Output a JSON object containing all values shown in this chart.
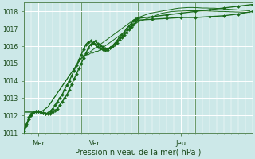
{
  "xlabel": "Pression niveau de la mer( hPa )",
  "bg_color": "#cce8e8",
  "grid_color": "#ffffff",
  "line_color": "#1a6b1a",
  "ylim": [
    1011,
    1018.5
  ],
  "xlim": [
    0,
    96
  ],
  "yticks": [
    1011,
    1012,
    1013,
    1014,
    1015,
    1016,
    1017,
    1018
  ],
  "day_ticks_major": [
    0,
    24,
    48,
    72,
    96
  ],
  "day_ticks_labeled": [
    6,
    30,
    66
  ],
  "day_labels": [
    "Mer",
    "Ven",
    "Jeu"
  ],
  "minor_tick_step": 3,
  "series_plain": [
    [
      1012.2,
      1012.2,
      1012.2,
      1012.2,
      1012.2,
      1012.2,
      1012.2,
      1012.2,
      1012.3,
      1012.4,
      1012.5,
      1012.7,
      1012.9,
      1013.1,
      1013.3,
      1013.5,
      1013.7,
      1013.9,
      1014.1,
      1014.3,
      1014.5,
      1014.7,
      1014.9,
      1015.1,
      1015.3,
      1015.4,
      1015.5,
      1015.6,
      1015.7,
      1015.8,
      1015.9,
      1016.0,
      1016.1,
      1016.2,
      1016.3,
      1016.4,
      1016.5,
      1016.6,
      1016.7,
      1016.8,
      1016.9,
      1017.0,
      1017.1,
      1017.2,
      1017.3,
      1017.4,
      1017.5,
      1017.6,
      1017.65,
      1017.7,
      1017.75,
      1017.8,
      1017.85,
      1017.9,
      1017.92,
      1017.95,
      1017.97,
      1018.0,
      1018.02,
      1018.05,
      1018.07,
      1018.1,
      1018.12,
      1018.15,
      1018.17,
      1018.19,
      1018.2,
      1018.21,
      1018.22,
      1018.23,
      1018.23,
      1018.23,
      1018.22,
      1018.22,
      1018.21,
      1018.2,
      1018.2,
      1018.2,
      1018.19,
      1018.19,
      1018.19,
      1018.18,
      1018.17,
      1018.16,
      1018.15,
      1018.14,
      1018.13,
      1018.12,
      1018.11,
      1018.1,
      1018.09,
      1018.08,
      1018.07,
      1018.06,
      1018.05,
      1018.04
    ],
    [
      1012.2,
      1012.2,
      1012.2,
      1012.2,
      1012.2,
      1012.2,
      1012.2,
      1012.2,
      1012.3,
      1012.4,
      1012.5,
      1012.7,
      1012.9,
      1013.1,
      1013.3,
      1013.5,
      1013.7,
      1013.9,
      1014.1,
      1014.3,
      1014.5,
      1014.7,
      1014.9,
      1015.1,
      1015.3,
      1015.4,
      1015.5,
      1015.5,
      1015.6,
      1015.6,
      1015.7,
      1015.7,
      1015.8,
      1015.9,
      1016.0,
      1016.1,
      1016.2,
      1016.3,
      1016.4,
      1016.5,
      1016.6,
      1016.7,
      1016.8,
      1016.9,
      1017.0,
      1017.1,
      1017.2,
      1017.3,
      1017.4,
      1017.45,
      1017.5,
      1017.55,
      1017.6,
      1017.65,
      1017.7,
      1017.75,
      1017.8,
      1017.85,
      1017.9,
      1017.92,
      1017.95,
      1017.97,
      1018.0,
      1018.0,
      1018.01,
      1018.02,
      1018.02,
      1018.03,
      1018.03,
      1018.04,
      1018.04,
      1018.04,
      1018.04,
      1018.04,
      1018.04,
      1018.03,
      1018.03,
      1018.03,
      1018.02,
      1018.02,
      1018.01,
      1018.01,
      1018.0,
      1018.0,
      1018.0,
      1017.99,
      1017.99,
      1017.98,
      1017.98,
      1017.97,
      1017.97,
      1017.96,
      1017.96,
      1017.95,
      1017.95,
      1017.94
    ]
  ],
  "series_marked": [
    {
      "x": [
        0,
        1,
        2,
        3,
        4,
        5,
        6,
        7,
        8,
        9,
        10,
        11,
        12,
        13,
        14,
        15,
        16,
        17,
        18,
        19,
        20,
        21,
        22,
        23,
        24,
        25,
        26,
        27,
        28,
        29,
        30,
        31,
        32,
        33,
        34,
        35,
        36,
        37,
        38,
        39,
        40,
        41,
        42,
        43,
        44,
        45,
        46,
        47,
        48,
        54,
        60,
        66,
        72,
        78,
        84,
        90,
        96
      ],
      "y": [
        1011.1,
        1011.4,
        1011.8,
        1012.0,
        1012.2,
        1012.25,
        1012.25,
        1012.2,
        1012.15,
        1012.1,
        1012.1,
        1012.1,
        1012.2,
        1012.3,
        1012.4,
        1012.6,
        1012.8,
        1013.0,
        1013.2,
        1013.5,
        1013.8,
        1014.1,
        1014.4,
        1014.7,
        1015.0,
        1015.3,
        1015.6,
        1015.9,
        1016.1,
        1016.2,
        1016.3,
        1016.15,
        1016.05,
        1015.95,
        1015.85,
        1015.85,
        1015.9,
        1016.0,
        1016.1,
        1016.2,
        1016.35,
        1016.5,
        1016.65,
        1016.8,
        1016.95,
        1017.1,
        1017.25,
        1017.4,
        1017.5,
        1017.55,
        1017.6,
        1017.65,
        1017.65,
        1017.7,
        1017.75,
        1017.85,
        1018.0
      ]
    },
    {
      "x": [
        0,
        1,
        2,
        3,
        4,
        5,
        6,
        7,
        8,
        9,
        10,
        11,
        12,
        13,
        14,
        15,
        16,
        17,
        18,
        19,
        20,
        21,
        22,
        23,
        24,
        25,
        26,
        27,
        28,
        29,
        30,
        31,
        32,
        33,
        34,
        35,
        36,
        37,
        38,
        39,
        40,
        41,
        42,
        43,
        44,
        45,
        46,
        47,
        48,
        54,
        60,
        66,
        72,
        78,
        84,
        90,
        96
      ],
      "y": [
        1011.2,
        1011.5,
        1011.9,
        1012.1,
        1012.2,
        1012.25,
        1012.25,
        1012.2,
        1012.15,
        1012.1,
        1012.15,
        1012.25,
        1012.4,
        1012.6,
        1012.8,
        1013.0,
        1013.2,
        1013.5,
        1013.75,
        1014.0,
        1014.3,
        1014.6,
        1014.9,
        1015.2,
        1015.5,
        1015.8,
        1016.1,
        1016.25,
        1016.3,
        1016.2,
        1016.1,
        1015.95,
        1015.85,
        1015.8,
        1015.75,
        1015.75,
        1015.9,
        1016.0,
        1016.15,
        1016.3,
        1016.5,
        1016.65,
        1016.8,
        1017.0,
        1017.15,
        1017.3,
        1017.45,
        1017.55,
        1017.6,
        1017.7,
        1017.8,
        1017.9,
        1018.0,
        1018.1,
        1018.2,
        1018.3,
        1018.4
      ]
    }
  ],
  "marker": "D",
  "markersize": 2.0,
  "linewidth_plain": 0.7,
  "linewidth_marked": 1.0
}
